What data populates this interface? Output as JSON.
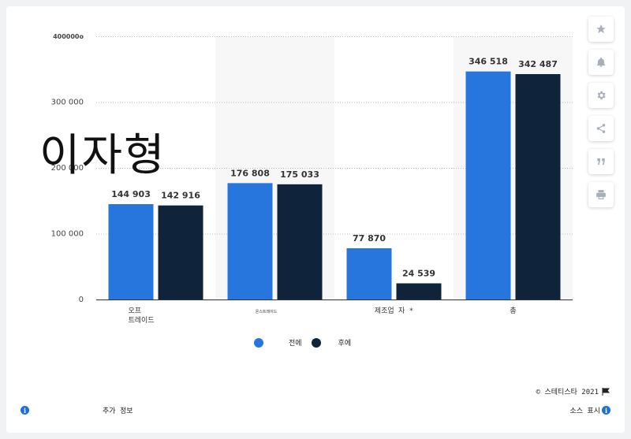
{
  "overlay_text": "이자형",
  "chart_data": {
    "type": "bar",
    "categories": [
      "오프\n트레이드",
      "온스트레이드",
      "제조업 자 *",
      "총"
    ],
    "series": [
      {
        "name": "전에",
        "values": [
          144903,
          176808,
          77870,
          346518
        ],
        "labels": [
          "144 903",
          "176 808",
          "77 870",
          "346 518"
        ],
        "color": "#2776de"
      },
      {
        "name": "후에",
        "values": [
          142916,
          175033,
          24539,
          342487
        ],
        "labels": [
          "142 916",
          "175 033",
          "24 539",
          "342 487"
        ],
        "color": "#0f243b"
      }
    ],
    "yticks": [
      {
        "value": 0,
        "label": "0"
      },
      {
        "value": 100000,
        "label": "100 000"
      },
      {
        "value": 200000,
        "label": "200 000"
      },
      {
        "value": 300000,
        "label": "300 000"
      },
      {
        "value": 400000,
        "label": "400000o"
      }
    ],
    "ylim": [
      0,
      400000
    ],
    "grid": true,
    "legend_position": "bottom-left"
  },
  "legend": {
    "before_label": "전에",
    "after_label": "후에",
    "before_color": "#2776de",
    "after_color": "#0f243b"
  },
  "footer": {
    "credit": "© 스테티스타 2021",
    "flag_icon": "flag-icon",
    "more_info": "추가 정보",
    "show_source": "소스 표시"
  },
  "sidebar_icons": [
    "star-icon",
    "bell-icon",
    "gear-icon",
    "share-icon",
    "quote-icon",
    "print-icon"
  ]
}
